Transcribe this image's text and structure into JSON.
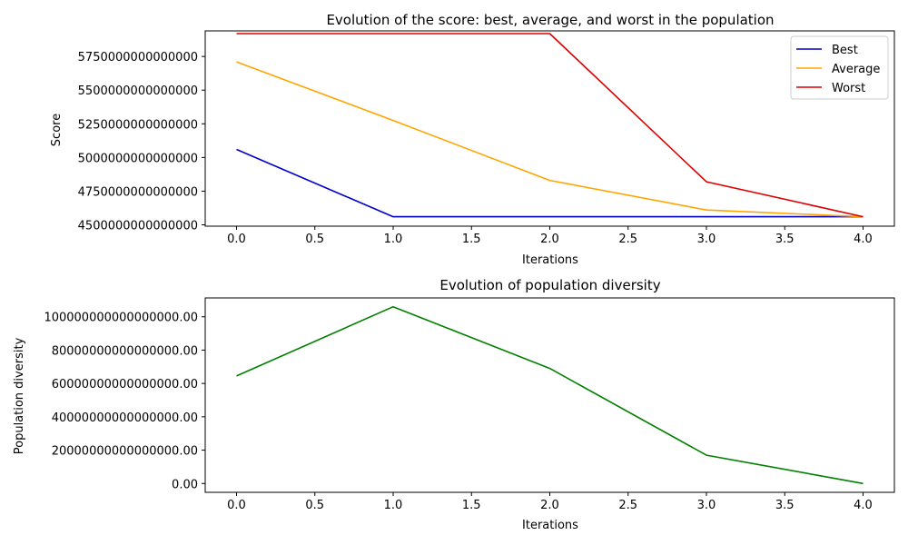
{
  "chart_data": [
    {
      "type": "line",
      "title": "Evolution of the score: best, average, and worst in the population",
      "xlabel": "Iterations",
      "ylabel": "Score",
      "x": [
        0,
        1,
        2,
        3,
        4
      ],
      "xticks": [
        0,
        0.5,
        1,
        1.5,
        2,
        2.5,
        3,
        3.5,
        4
      ],
      "xtick_labels": [
        "0.0",
        "0.5",
        "1.0",
        "1.5",
        "2.0",
        "2.5",
        "3.0",
        "3.5",
        "4.0"
      ],
      "xlim": [
        -0.2,
        4.2
      ],
      "yticks": [
        4500000000000000,
        4750000000000000,
        5000000000000000,
        5250000000000000,
        5500000000000000,
        5750000000000000
      ],
      "ytick_labels": [
        "4500000000000000",
        "4750000000000000",
        "5000000000000000",
        "5250000000000000",
        "5500000000000000",
        "5750000000000000"
      ],
      "ylim": [
        4490000000000000,
        5940000000000000
      ],
      "grid": false,
      "legend_position": "top-right",
      "series": [
        {
          "name": "Best",
          "color": "#0000cc",
          "values": [
            5060000000000000,
            4560000000000000,
            4560000000000000,
            4560000000000000,
            4560000000000000
          ]
        },
        {
          "name": "Average",
          "color": "#ffa500",
          "values": [
            5710000000000000,
            5275000000000000,
            4830000000000000,
            4610000000000000,
            4560000000000000
          ]
        },
        {
          "name": "Worst",
          "color": "#dd0000",
          "values": [
            5920000000000000,
            5920000000000000,
            5920000000000000,
            4820000000000000,
            4560000000000000
          ]
        }
      ]
    },
    {
      "type": "line",
      "title": "Evolution of population diversity",
      "xlabel": "Iterations",
      "ylabel": "Population diversity",
      "x": [
        0,
        1,
        2,
        3,
        4
      ],
      "xticks": [
        0,
        0.5,
        1,
        1.5,
        2,
        2.5,
        3,
        3.5,
        4
      ],
      "xtick_labels": [
        "0.0",
        "0.5",
        "1.0",
        "1.5",
        "2.0",
        "2.5",
        "3.0",
        "3.5",
        "4.0"
      ],
      "xlim": [
        -0.2,
        4.2
      ],
      "yticks": [
        0,
        20000000000000000,
        40000000000000000,
        60000000000000000,
        80000000000000000,
        100000000000000000
      ],
      "ytick_labels": [
        "0.00",
        "20000000000000000.00",
        "40000000000000000.00",
        "60000000000000000.00",
        "80000000000000000.00",
        "100000000000000000.00"
      ],
      "ylim": [
        -5300000000000000,
        111300000000000000
      ],
      "grid": false,
      "series": [
        {
          "color": "#008000",
          "values": [
            64500000000000000,
            106000000000000000,
            69000000000000000,
            17000000000000000,
            0
          ]
        }
      ]
    }
  ]
}
